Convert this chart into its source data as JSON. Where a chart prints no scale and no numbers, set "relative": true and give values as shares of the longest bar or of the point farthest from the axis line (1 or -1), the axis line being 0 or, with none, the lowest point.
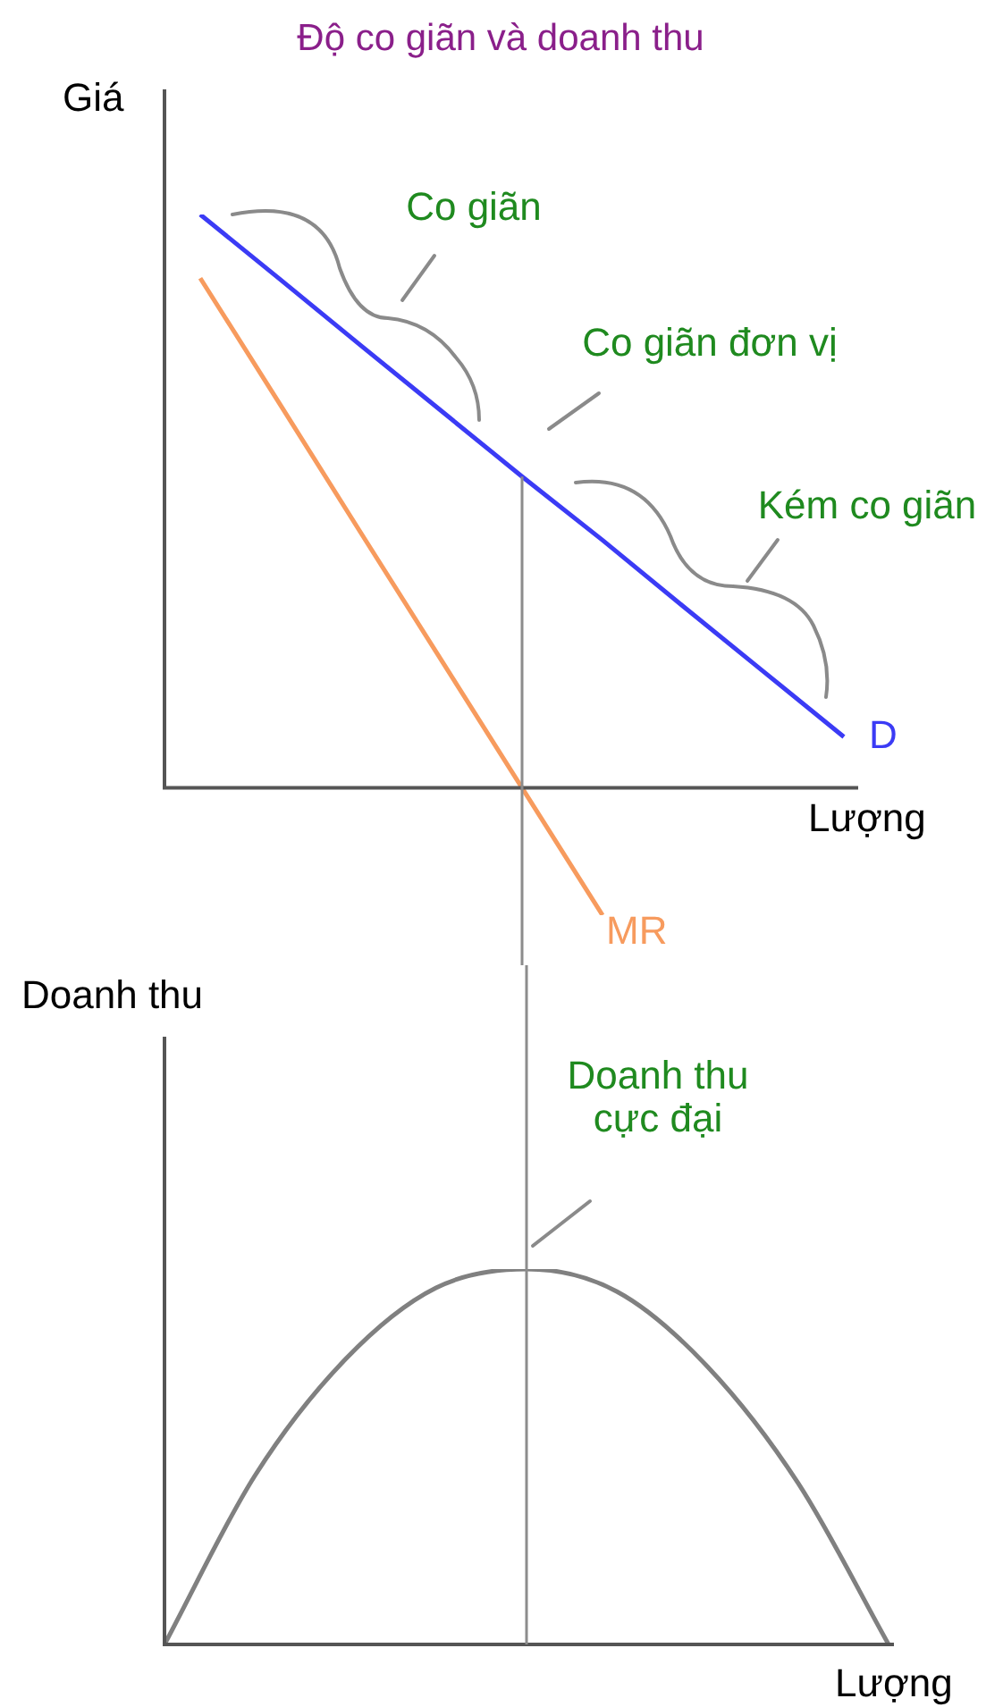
{
  "chart_data": [
    {
      "type": "line",
      "title": "Độ co giãn và doanh thu",
      "xlabel": "Lượng",
      "ylabel": "Giá",
      "relative": true,
      "legend": false,
      "marker": "none",
      "line_style": "solid",
      "categories": [
        null,
        null,
        null,
        null,
        null,
        null,
        null,
        null,
        null
      ],
      "series": [
        {
          "name": "D",
          "color": "#3b3bf5",
          "values": [
            1,
            0.886,
            0.771,
            0.657,
            0.543,
            0.432,
            0.317,
            0.203,
            0.089
          ]
        },
        {
          "name": "MR",
          "color": "#f79b5e",
          "values": [
            0.889,
            0.667,
            0.444,
            0.222,
            0,
            -0.222,
            null,
            null,
            null
          ]
        }
      ],
      "annotations": [
        "Co giãn",
        "Co giãn đơn vị",
        "Kém co giãn"
      ]
    },
    {
      "type": "line",
      "xlabel": "Lượng",
      "ylabel": "Doanh thu",
      "relative": true,
      "legend": false,
      "marker": "none",
      "line_style": "solid",
      "categories": [
        null,
        null,
        null,
        null,
        null,
        null,
        null,
        null,
        null
      ],
      "series": [
        {
          "color": "#808080",
          "values": [
            0,
            0.45,
            0.76,
            0.95,
            1,
            0.94,
            0.74,
            0.43,
            0
          ]
        }
      ],
      "annotations": [
        "Doanh thu cực đại"
      ]
    }
  ]
}
